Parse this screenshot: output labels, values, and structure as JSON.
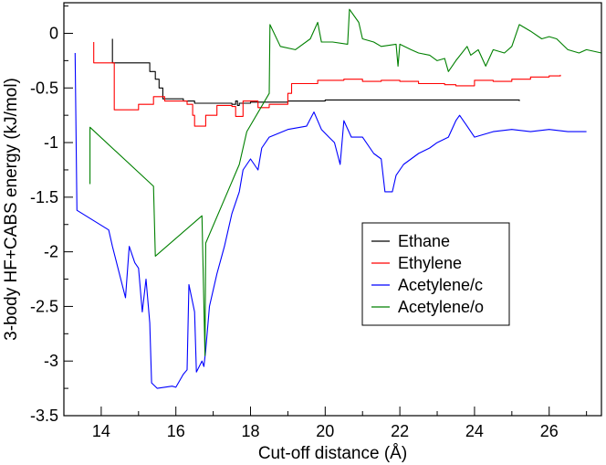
{
  "chart_data": {
    "type": "line",
    "title": "",
    "xlabel": "Cut-off distance (Å)",
    "ylabel": "3-body HF+CABS energy (kJ/mol)",
    "xlim": [
      13,
      27.4
    ],
    "ylim": [
      -3.5,
      0.28
    ],
    "x_ticks": [
      14,
      16,
      18,
      20,
      22,
      24,
      26
    ],
    "y_ticks": [
      0,
      -0.5,
      -1,
      -1.5,
      -2,
      -2.5,
      -3,
      -3.5
    ],
    "x_tick_labels": [
      "14",
      "16",
      "18",
      "20",
      "22",
      "24",
      "26"
    ],
    "y_tick_labels": [
      "0",
      "-0.5",
      "-1",
      "-1.5",
      "-2",
      "-2.5",
      "-3",
      "-3.5"
    ],
    "grid": false,
    "legend_position": "center-right",
    "series": [
      {
        "name": "Ethane",
        "color": "#000000",
        "step": true,
        "points": [
          [
            14.3,
            -0.05
          ],
          [
            14.3,
            -0.27
          ],
          [
            15.3,
            -0.35
          ],
          [
            15.45,
            -0.42
          ],
          [
            15.55,
            -0.5
          ],
          [
            15.65,
            -0.6
          ],
          [
            16.2,
            -0.62
          ],
          [
            16.5,
            -0.64
          ],
          [
            17.5,
            -0.65
          ],
          [
            17.6,
            -0.62
          ],
          [
            17.65,
            -0.66
          ],
          [
            17.7,
            -0.64
          ],
          [
            18.0,
            -0.63
          ],
          [
            19.0,
            -0.62
          ],
          [
            20.0,
            -0.61
          ],
          [
            22.0,
            -0.61
          ],
          [
            25.2,
            -0.62
          ]
        ]
      },
      {
        "name": "Ethylene",
        "color": "#ff0000",
        "step": true,
        "points": [
          [
            13.8,
            -0.08
          ],
          [
            13.8,
            -0.27
          ],
          [
            14.35,
            -0.3
          ],
          [
            14.35,
            -0.7
          ],
          [
            15.0,
            -0.65
          ],
          [
            15.4,
            -0.58
          ],
          [
            15.7,
            -0.62
          ],
          [
            16.3,
            -0.65
          ],
          [
            16.45,
            -0.75
          ],
          [
            16.5,
            -0.85
          ],
          [
            16.8,
            -0.75
          ],
          [
            17.1,
            -0.66
          ],
          [
            17.5,
            -0.67
          ],
          [
            17.6,
            -0.76
          ],
          [
            17.8,
            -0.62
          ],
          [
            18.2,
            -0.68
          ],
          [
            18.5,
            -0.65
          ],
          [
            19.0,
            -0.55
          ],
          [
            19.1,
            -0.46
          ],
          [
            19.8,
            -0.43
          ],
          [
            20.5,
            -0.42
          ],
          [
            21.0,
            -0.44
          ],
          [
            21.5,
            -0.43
          ],
          [
            22.0,
            -0.44
          ],
          [
            22.5,
            -0.46
          ],
          [
            23.2,
            -0.47
          ],
          [
            23.5,
            -0.48
          ],
          [
            24.0,
            -0.43
          ],
          [
            24.5,
            -0.44
          ],
          [
            25.0,
            -0.42
          ],
          [
            25.5,
            -0.4
          ],
          [
            26.0,
            -0.39
          ],
          [
            26.3,
            -0.38
          ]
        ]
      },
      {
        "name": "Acetylene/c",
        "color": "#0000ff",
        "step": false,
        "points": [
          [
            13.3,
            -0.18
          ],
          [
            13.35,
            -1.62
          ],
          [
            14.2,
            -1.8
          ],
          [
            14.3,
            -1.95
          ],
          [
            14.65,
            -2.42
          ],
          [
            14.75,
            -1.95
          ],
          [
            14.9,
            -2.1
          ],
          [
            15.0,
            -2.15
          ],
          [
            15.1,
            -2.55
          ],
          [
            15.2,
            -2.25
          ],
          [
            15.3,
            -2.65
          ],
          [
            15.35,
            -3.2
          ],
          [
            15.5,
            -3.25
          ],
          [
            15.9,
            -3.23
          ],
          [
            16.0,
            -3.24
          ],
          [
            16.2,
            -3.12
          ],
          [
            16.3,
            -3.08
          ],
          [
            16.35,
            -2.3
          ],
          [
            16.5,
            -2.55
          ],
          [
            16.55,
            -3.1
          ],
          [
            16.7,
            -3.0
          ],
          [
            16.75,
            -3.05
          ],
          [
            16.8,
            -2.9
          ],
          [
            16.9,
            -2.5
          ],
          [
            17.1,
            -2.2
          ],
          [
            17.3,
            -1.95
          ],
          [
            17.5,
            -1.65
          ],
          [
            17.7,
            -1.45
          ],
          [
            17.8,
            -1.25
          ],
          [
            17.9,
            -1.2
          ],
          [
            18.0,
            -1.15
          ],
          [
            18.1,
            -1.2
          ],
          [
            18.2,
            -1.25
          ],
          [
            18.3,
            -1.05
          ],
          [
            18.5,
            -0.95
          ],
          [
            19.0,
            -0.88
          ],
          [
            19.5,
            -0.85
          ],
          [
            19.7,
            -0.72
          ],
          [
            19.9,
            -0.88
          ],
          [
            20.1,
            -0.95
          ],
          [
            20.25,
            -1.0
          ],
          [
            20.4,
            -1.2
          ],
          [
            20.5,
            -0.8
          ],
          [
            20.7,
            -0.95
          ],
          [
            21.0,
            -0.95
          ],
          [
            21.3,
            -1.1
          ],
          [
            21.5,
            -1.15
          ],
          [
            21.6,
            -1.45
          ],
          [
            21.8,
            -1.45
          ],
          [
            21.9,
            -1.3
          ],
          [
            22.1,
            -1.2
          ],
          [
            22.3,
            -1.15
          ],
          [
            22.5,
            -1.1
          ],
          [
            22.8,
            -1.05
          ],
          [
            23.0,
            -1.0
          ],
          [
            23.3,
            -0.95
          ],
          [
            23.5,
            -0.8
          ],
          [
            23.6,
            -0.75
          ],
          [
            23.8,
            -0.85
          ],
          [
            24.0,
            -0.95
          ],
          [
            24.5,
            -0.9
          ],
          [
            25.0,
            -0.88
          ],
          [
            25.5,
            -0.9
          ],
          [
            26.0,
            -0.88
          ],
          [
            26.5,
            -0.9
          ],
          [
            27.0,
            -0.9
          ]
        ]
      },
      {
        "name": "Acetylene/o",
        "color": "#008000",
        "step": false,
        "points": [
          [
            13.7,
            -1.38
          ],
          [
            13.7,
            -0.86
          ],
          [
            15.4,
            -1.4
          ],
          [
            15.45,
            -2.04
          ],
          [
            16.7,
            -1.67
          ],
          [
            16.78,
            -2.95
          ],
          [
            16.8,
            -1.92
          ],
          [
            17.7,
            -1.2
          ],
          [
            17.9,
            -0.9
          ],
          [
            18.5,
            -0.55
          ],
          [
            18.52,
            0.08
          ],
          [
            18.8,
            -0.12
          ],
          [
            19.2,
            -0.15
          ],
          [
            19.6,
            -0.05
          ],
          [
            19.8,
            0.1
          ],
          [
            19.9,
            -0.08
          ],
          [
            20.2,
            -0.08
          ],
          [
            20.6,
            -0.1
          ],
          [
            20.65,
            0.22
          ],
          [
            20.9,
            0.1
          ],
          [
            21.0,
            -0.05
          ],
          [
            21.3,
            -0.08
          ],
          [
            21.5,
            -0.12
          ],
          [
            21.9,
            -0.1
          ],
          [
            21.95,
            -0.3
          ],
          [
            22.0,
            -0.1
          ],
          [
            22.3,
            -0.15
          ],
          [
            22.5,
            -0.18
          ],
          [
            22.8,
            -0.2
          ],
          [
            23.0,
            -0.25
          ],
          [
            23.2,
            -0.23
          ],
          [
            23.3,
            -0.35
          ],
          [
            23.4,
            -0.3
          ],
          [
            23.5,
            -0.25
          ],
          [
            23.8,
            -0.12
          ],
          [
            23.9,
            -0.2
          ],
          [
            24.1,
            -0.15
          ],
          [
            24.3,
            -0.3
          ],
          [
            24.5,
            -0.15
          ],
          [
            24.8,
            -0.18
          ],
          [
            25.0,
            -0.12
          ],
          [
            25.2,
            0.08
          ],
          [
            25.5,
            0.02
          ],
          [
            25.8,
            -0.05
          ],
          [
            26.0,
            -0.03
          ],
          [
            26.2,
            -0.05
          ],
          [
            26.5,
            -0.15
          ],
          [
            26.8,
            -0.18
          ],
          [
            27.0,
            -0.15
          ],
          [
            27.4,
            -0.18
          ]
        ]
      }
    ]
  }
}
